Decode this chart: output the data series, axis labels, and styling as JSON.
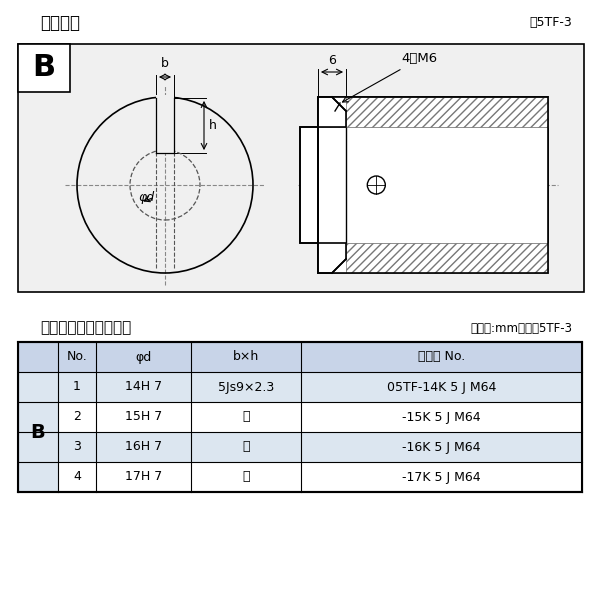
{
  "title_left": "軸穴形状",
  "title_right": "図5TF-3",
  "table_title_left": "軸穴形状コード一覧表",
  "table_title_right": "（単位:mm）　表5TF-3",
  "bg_color": "#ffffff",
  "diagram_bg": "#f0f0f0",
  "label_B": "B",
  "dim_b": "b",
  "dim_h": "h",
  "dim_phid": "φd",
  "dim_6": "6",
  "dim_4M6": "4－M6",
  "col_headers": [
    "No.",
    "φd",
    "b×h",
    "コード No."
  ],
  "row_label": "B",
  "rows": [
    [
      "1",
      "14H 7",
      "5Js9×2.3",
      "05TF-14K 5 J M64"
    ],
    [
      "2",
      "15H 7",
      "〃",
      "-15K 5 J M64"
    ],
    [
      "3",
      "16H 7",
      "〃",
      "-16K 5 J M64"
    ],
    [
      "4",
      "17H 7",
      "〃",
      "-17K 5 J M64"
    ]
  ],
  "header_bg": "#c8d4e8",
  "row_bg_light": "#dce6f0",
  "row_bg_white": "#ffffff",
  "table_border": "#000000"
}
